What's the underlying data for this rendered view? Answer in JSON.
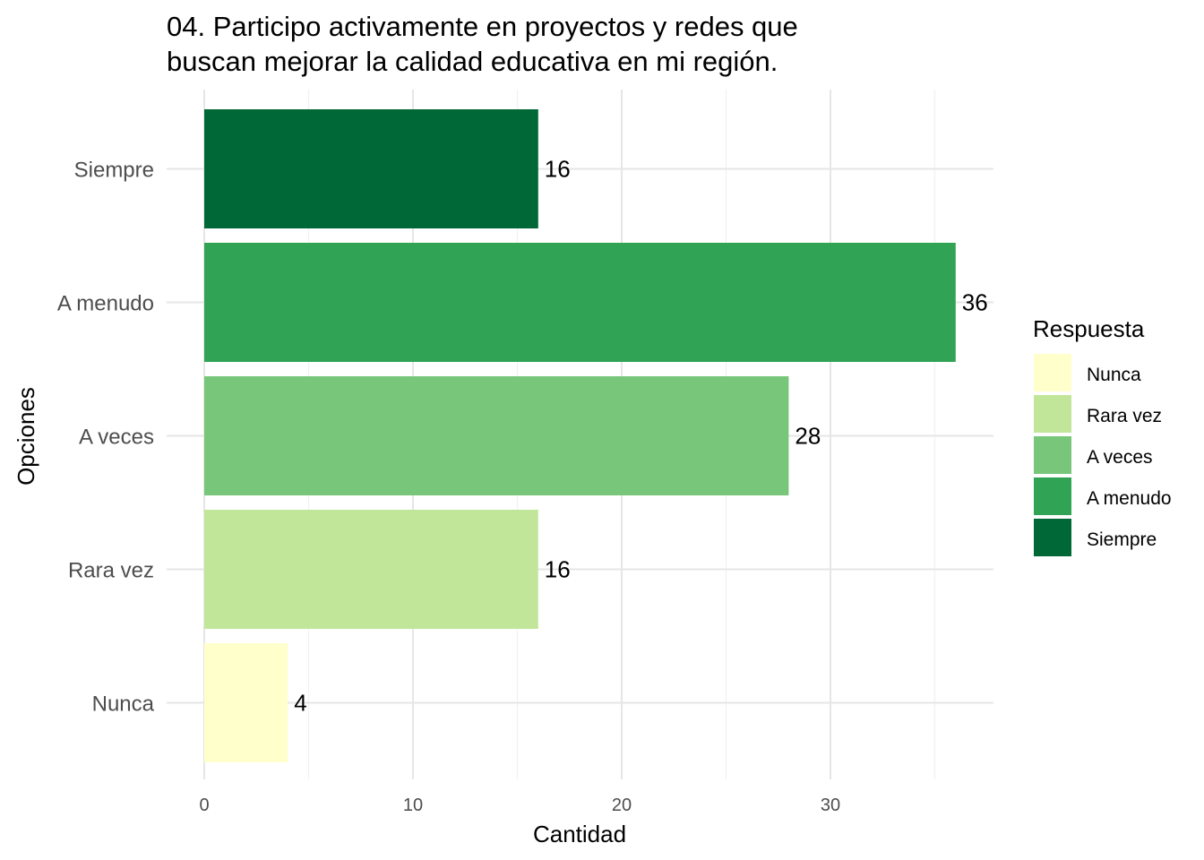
{
  "chart_data": {
    "type": "bar",
    "orientation": "horizontal",
    "title_lines": [
      "04. Participo activamente en proyectos y redes que",
      "buscan mejorar la calidad educativa en mi región."
    ],
    "xlabel": "Cantidad",
    "ylabel": "Opciones",
    "xlim": [
      0,
      38
    ],
    "x_ticks": [
      0,
      10,
      20,
      30
    ],
    "x_tick_labels": [
      "0",
      "10",
      "20",
      "30"
    ],
    "grid": true,
    "categories": [
      "Siempre",
      "A menudo",
      "A veces",
      "Rara vez",
      "Nunca"
    ],
    "values": [
      16,
      36,
      28,
      16,
      4
    ],
    "data_labels": [
      "16",
      "36",
      "28",
      "16",
      "4"
    ],
    "colors": [
      "#006837",
      "#31a354",
      "#78c679",
      "#c2e699",
      "#ffffcc"
    ],
    "legend": {
      "title": "Respuesta",
      "position": "right",
      "entries": [
        {
          "label": "Nunca",
          "color": "#ffffcc"
        },
        {
          "label": "Rara vez",
          "color": "#c2e699"
        },
        {
          "label": "A veces",
          "color": "#78c679"
        },
        {
          "label": "A menudo",
          "color": "#31a354"
        },
        {
          "label": "Siempre",
          "color": "#006837"
        }
      ]
    }
  }
}
